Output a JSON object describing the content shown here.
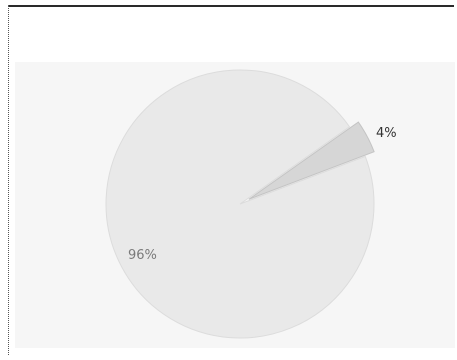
{
  "chart_data": {
    "type": "pie",
    "categories": [
      "",
      ""
    ],
    "values": [
      96,
      4
    ],
    "labels": [
      "96%",
      "4%"
    ],
    "colors": [
      "#e9e9e9",
      "#d6d6d6"
    ],
    "label_colors": [
      "#7a7a7a",
      "#333333"
    ],
    "title": "",
    "legend": "none"
  }
}
